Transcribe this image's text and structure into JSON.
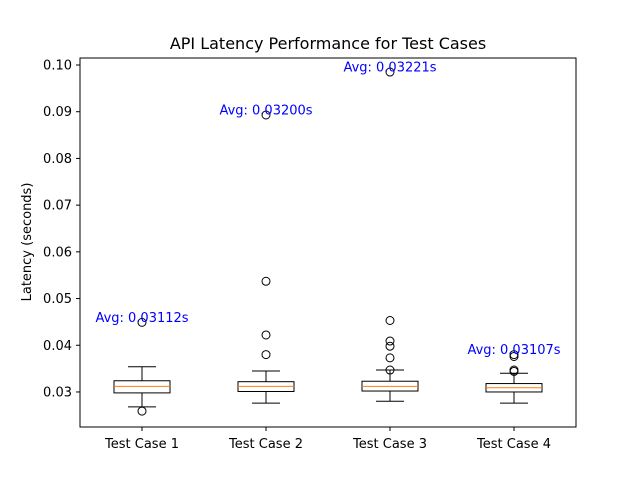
{
  "chart_data": {
    "type": "boxplot",
    "title": "API Latency Performance for Test Cases",
    "xlabel": "",
    "ylabel": "Latency (seconds)",
    "ylim": [
      0.0225,
      0.1015
    ],
    "yticks": [
      0.03,
      0.04,
      0.05,
      0.06,
      0.07,
      0.08,
      0.09,
      0.1
    ],
    "ytick_labels": [
      "0.030",
      "0.040",
      "0.050",
      "0.060",
      "0.070",
      "0.080",
      "0.090",
      "0.100"
    ],
    "ytick_labels_display": [
      "0.03",
      "0.04",
      "0.05",
      "0.06",
      "0.07",
      "0.08",
      "0.09",
      "0.10"
    ],
    "categories": [
      "Test Case 1",
      "Test Case 2",
      "Test Case 3",
      "Test Case 4"
    ],
    "boxes": [
      {
        "name": "Test Case 1",
        "whisker_low": 0.0268,
        "q1": 0.0298,
        "median": 0.0312,
        "q3": 0.0324,
        "whisker_high": 0.0354,
        "outliers": [
          0.0449,
          0.0259
        ]
      },
      {
        "name": "Test Case 2",
        "whisker_low": 0.0276,
        "q1": 0.0301,
        "median": 0.0312,
        "q3": 0.0322,
        "whisker_high": 0.0345,
        "outliers": [
          0.0893,
          0.0537,
          0.0422,
          0.038
        ]
      },
      {
        "name": "Test Case 3",
        "whisker_low": 0.028,
        "q1": 0.0302,
        "median": 0.0312,
        "q3": 0.0323,
        "whisker_high": 0.0347,
        "outliers": [
          0.0985,
          0.0453,
          0.0409,
          0.0398,
          0.0373,
          0.0347
        ]
      },
      {
        "name": "Test Case 4",
        "whisker_low": 0.0276,
        "q1": 0.03,
        "median": 0.0309,
        "q3": 0.0318,
        "whisker_high": 0.034,
        "outliers": [
          0.038,
          0.0376,
          0.0347,
          0.0344
        ]
      }
    ],
    "annotations": [
      {
        "text": "Avg: 0.03112s",
        "x": "Test Case 1",
        "y": 0.0449
      },
      {
        "text": "Avg: 0.03200s",
        "x": "Test Case 2",
        "y": 0.0893
      },
      {
        "text": "Avg: 0.03221s",
        "x": "Test Case 3",
        "y": 0.0985
      },
      {
        "text": "Avg: 0.03107s",
        "x": "Test Case 4",
        "y": 0.038
      }
    ],
    "colors": {
      "box": "#000000",
      "median": "#ff7f0e",
      "annotation": "#0000ff",
      "outlier": "#000000"
    },
    "grid": false,
    "legend": "none"
  }
}
